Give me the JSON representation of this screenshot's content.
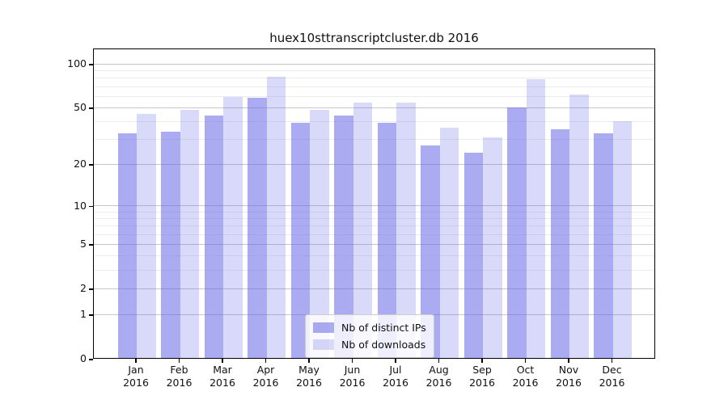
{
  "chart_data": {
    "type": "bar",
    "title": "huex10sttranscriptcluster.db 2016",
    "categories": [
      "Jan",
      "Feb",
      "Mar",
      "Apr",
      "May",
      "Jun",
      "Jul",
      "Aug",
      "Sep",
      "Oct",
      "Nov",
      "Dec"
    ],
    "year_label": "2016",
    "series": [
      {
        "name": "Nb of distinct IPs",
        "color": "rgba(102,102,230,0.55)",
        "values": [
          33,
          34,
          44,
          58,
          39,
          44,
          39,
          27,
          24,
          50,
          35,
          33
        ]
      },
      {
        "name": "Nb of downloads",
        "color": "rgba(102,102,230,0.25)",
        "values": [
          45,
          48,
          59,
          81,
          48,
          54,
          54,
          36,
          31,
          78,
          61,
          40
        ]
      }
    ],
    "y_scale": "log10(1+x)",
    "ylim": [
      0,
      128
    ],
    "y_major_ticks": [
      0,
      1,
      2,
      5,
      10,
      20,
      50,
      100
    ],
    "y_minor_ticks": [
      3,
      4,
      6,
      7,
      8,
      9,
      30,
      40,
      60,
      70,
      80,
      90
    ],
    "grid": "on",
    "legend_position": "bottom-center",
    "colors": {
      "grid_major": "#c6c6c6",
      "grid_minor": "#ececec",
      "axis": "#000000"
    }
  }
}
